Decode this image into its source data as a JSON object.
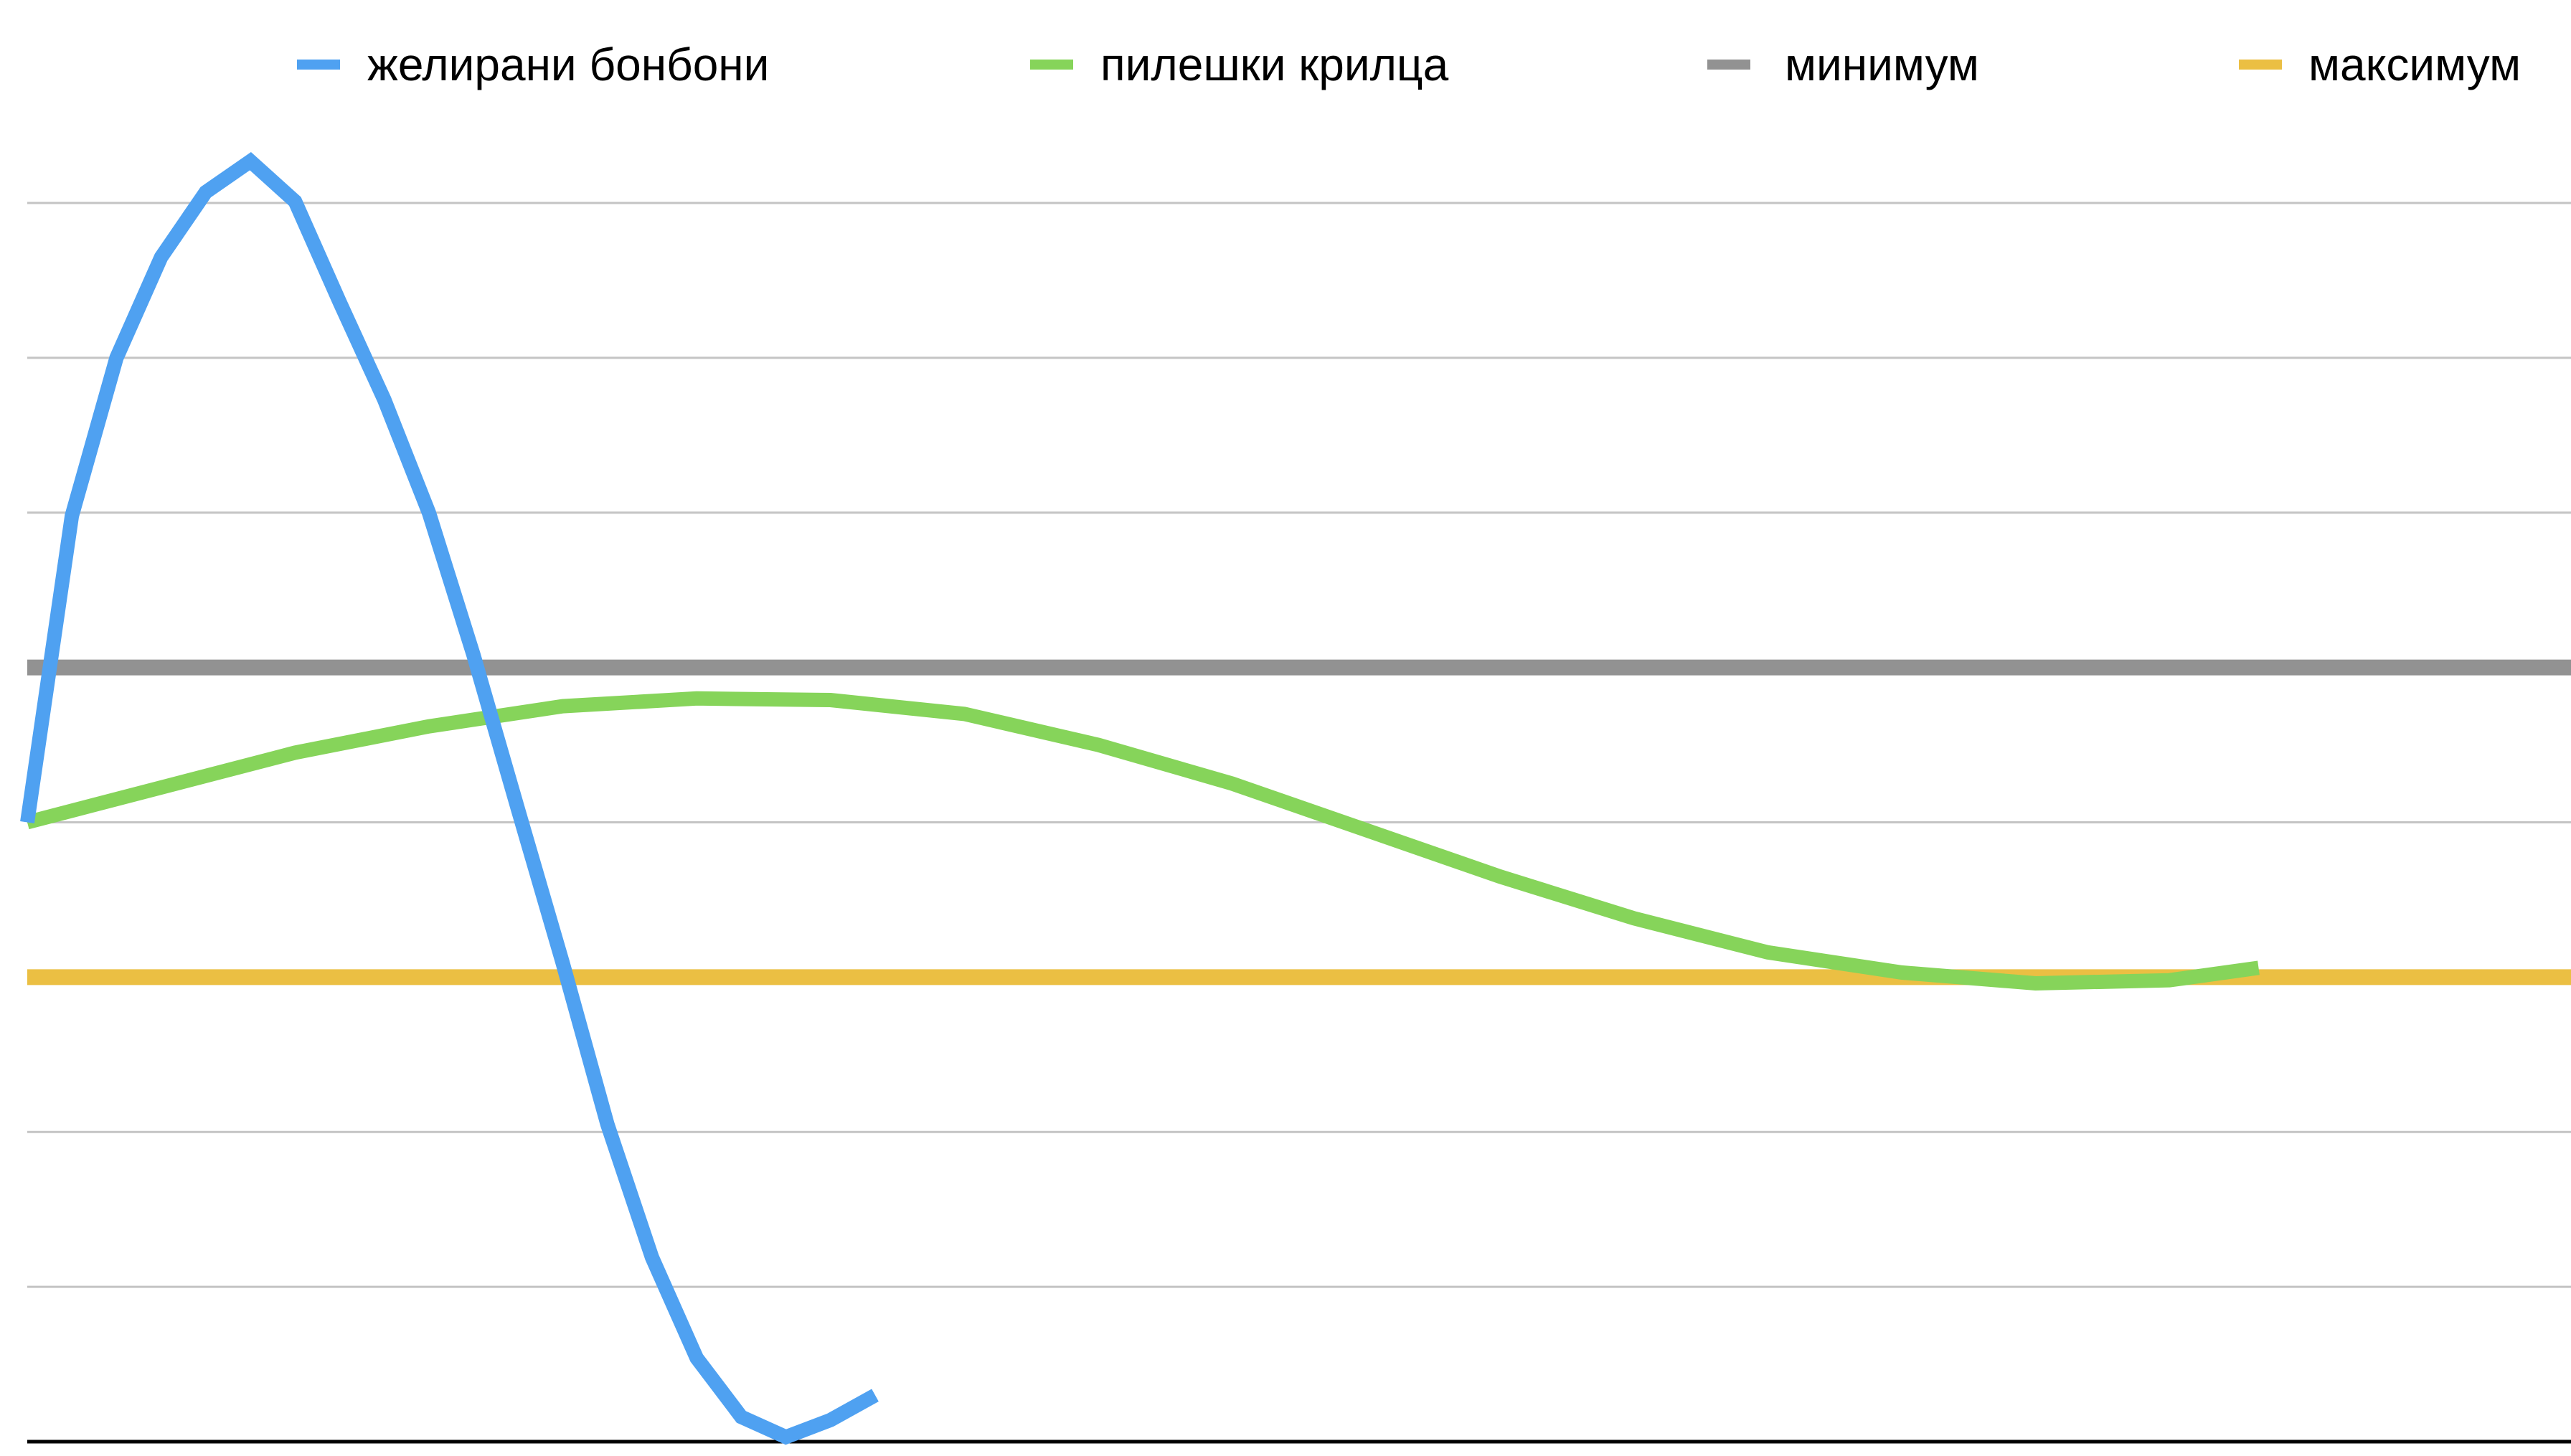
{
  "chart_data": {
    "type": "line",
    "title": "",
    "xlabel": "",
    "ylabel": "",
    "xlim": [
      0,
      57
    ],
    "ylim": [
      0,
      8
    ],
    "grid": true,
    "legend_position": "top",
    "series": [
      {
        "name": "желирани бонбони",
        "color": "#4fa1f1",
        "x": [
          0,
          1,
          2,
          3,
          4,
          5,
          6,
          7,
          8,
          9,
          10,
          11,
          12,
          13,
          14,
          15,
          16,
          17,
          18,
          19
        ],
        "y": [
          4.0,
          5.98,
          7.0,
          7.65,
          8.07,
          8.27,
          8.01,
          7.36,
          6.73,
          6.0,
          5.08,
          4.08,
          3.09,
          2.05,
          1.19,
          0.54,
          0.16,
          0.03,
          0.14,
          0.3
        ]
      },
      {
        "name": "пилешки крилца",
        "color": "#86d45a",
        "x": [
          0,
          6,
          9,
          12,
          15,
          18,
          21,
          24,
          27,
          30,
          33,
          36,
          39,
          42,
          45,
          48,
          50
        ],
        "y": [
          4.0,
          4.45,
          4.62,
          4.75,
          4.8,
          4.79,
          4.7,
          4.5,
          4.25,
          3.95,
          3.65,
          3.38,
          3.16,
          3.03,
          2.96,
          2.98,
          3.06
        ]
      },
      {
        "name": "минимум",
        "color": "#929292",
        "x": [
          0,
          57
        ],
        "y": [
          5.0,
          5.0
        ]
      },
      {
        "name": "максимум",
        "color": "#ebbf43",
        "x": [
          0,
          57
        ],
        "y": [
          3.0,
          3.0
        ]
      }
    ]
  }
}
